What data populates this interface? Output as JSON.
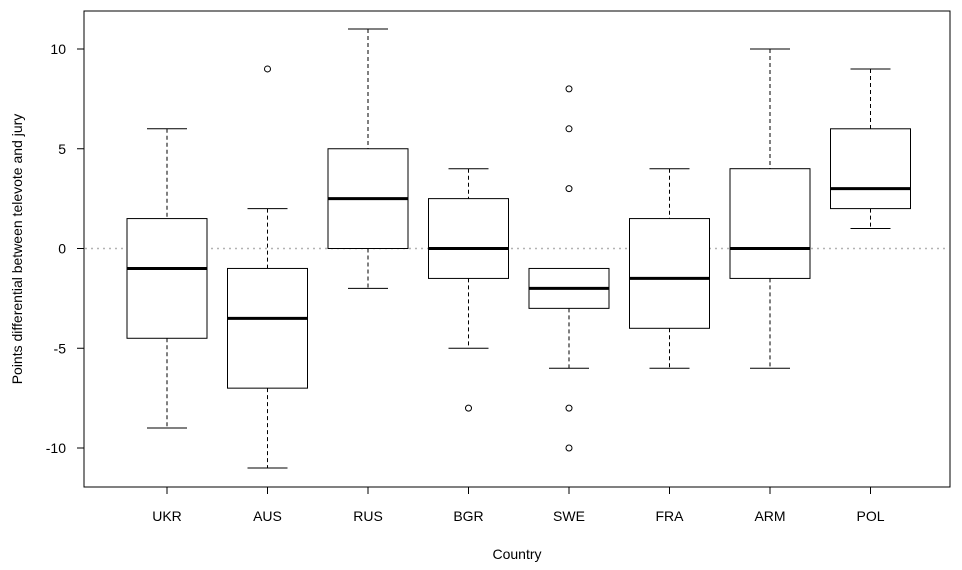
{
  "chart_data": {
    "type": "boxplot",
    "xlabel": "Country",
    "ylabel": "Points differential between televote and jury",
    "ylim": [
      -12,
      12
    ],
    "yticks": [
      -10,
      -5,
      0,
      5,
      10
    ],
    "reference_line": 0,
    "categories": [
      "UKR",
      "AUS",
      "RUS",
      "BGR",
      "SWE",
      "FRA",
      "ARM",
      "POL"
    ],
    "boxes": [
      {
        "country": "UKR",
        "whisker_low": -9,
        "q1": -4.5,
        "median": -1,
        "q3": 1.5,
        "whisker_high": 6,
        "outliers": []
      },
      {
        "country": "AUS",
        "whisker_low": -11,
        "q1": -7,
        "median": -3.5,
        "q3": -1,
        "whisker_high": 2,
        "outliers": [
          9
        ]
      },
      {
        "country": "RUS",
        "whisker_low": -2,
        "q1": 0,
        "median": 2.5,
        "q3": 5,
        "whisker_high": 11,
        "outliers": []
      },
      {
        "country": "BGR",
        "whisker_low": -5,
        "q1": -1.5,
        "median": 0,
        "q3": 2.5,
        "whisker_high": 4,
        "outliers": [
          -8
        ]
      },
      {
        "country": "SWE",
        "whisker_low": -6,
        "q1": -3,
        "median": -2,
        "q3": -1,
        "whisker_high": -1,
        "outliers": [
          8,
          6,
          3,
          -8,
          -10
        ]
      },
      {
        "country": "FRA",
        "whisker_low": -6,
        "q1": -4,
        "median": -1.5,
        "q3": 1.5,
        "whisker_high": 4,
        "outliers": []
      },
      {
        "country": "ARM",
        "whisker_low": -6,
        "q1": -1.5,
        "median": 0,
        "q3": 4,
        "whisker_high": 10,
        "outliers": []
      },
      {
        "country": "POL",
        "whisker_low": 1,
        "q1": 2,
        "median": 3,
        "q3": 6,
        "whisker_high": 9,
        "outliers": []
      }
    ]
  }
}
